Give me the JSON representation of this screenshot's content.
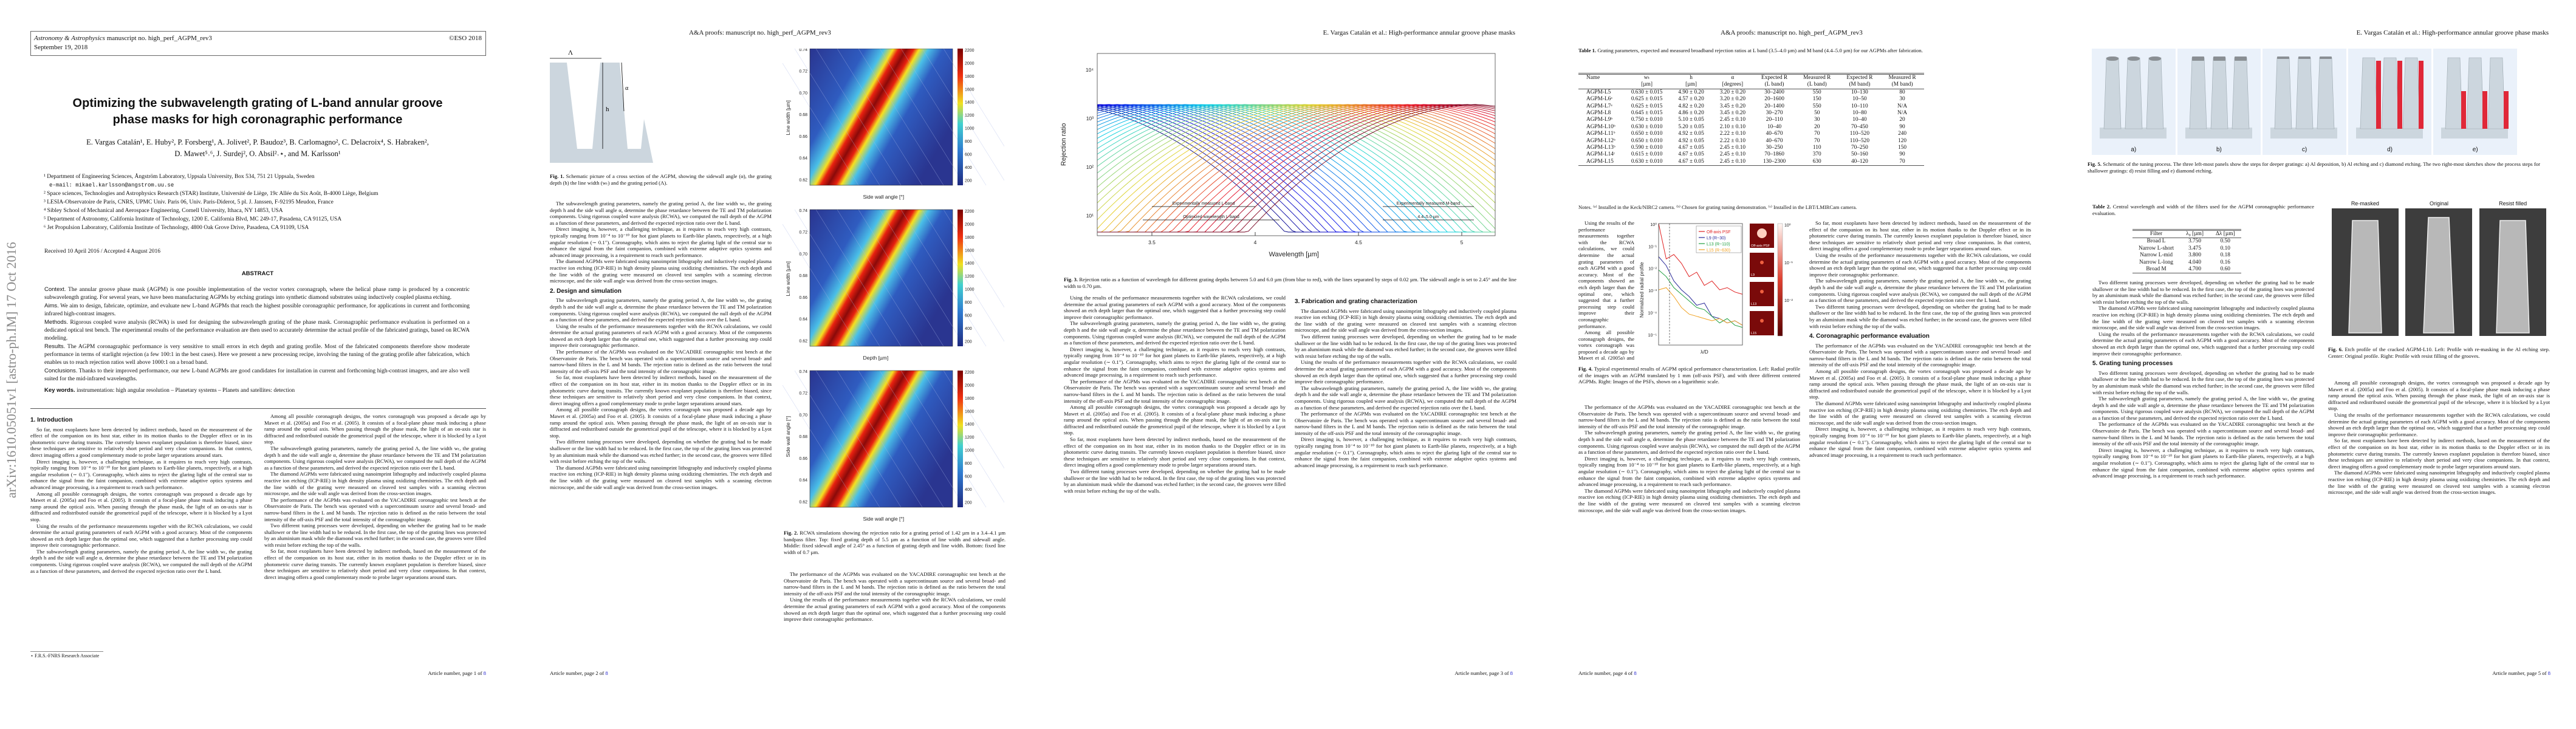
{
  "p1": {
    "journal": "Astronomy & Astrophysics",
    "manuscript": "manuscript no. high_perf_AGPM_rev3",
    "date": "September 19, 2018",
    "copyright": "©ESO 2018",
    "title1": "Optimizing the subwavelength grating of L-band annular groove",
    "title2": "phase masks for high coronagraphic performance",
    "authors1": "E. Vargas Catalán¹, E. Huby², P. Forsberg¹, A. Jolivet², P. Baudoz³, B. Carlomagno², C. Delacroix⁴, S. Habraken², ",
    "authors2": "D. Mawet⁵˒⁶, J. Surdej², O. Absil²˒⋆, and M. Karlsson¹",
    "affiliations": [
      "¹ Department of Engineering Sciences, Ångström Laboratory, Uppsala University, Box 534, 751 21 Uppsala, Sweden",
      "e-mail: mikael.karlsson@angstrom.uu.se",
      "² Space sciences, Technologies and Astrophysics Research (STAR) Institute, Université de Liège, 19c Allée du Six Août, B-4000 Liège, Belgium",
      "³ LESIA-Observatoire de Paris, CNRS, UPMC Univ. Paris 06, Univ. Paris-Diderot, 5 pl. J. Janssen, F-92195 Meudon, France",
      "⁴ Sibley School of Mechanical and Aerospace Engineering, Cornell University, Ithaca, NY 14853, USA",
      "⁵ Department of Astronomy, California Institute of Technology, 1200 E. California Blvd, MC 249-17, Pasadena, CA 91125, USA",
      "⁶ Jet Propulsion Laboratory, California Institute of Technology, 4800 Oak Grove Drive, Pasadena, CA 91109, USA"
    ],
    "received": "Received 10 April 2016 / Accepted 4 August 2016",
    "abstract_heading": "ABSTRACT",
    "abstract": [
      {
        "label": "Context.",
        "text": " The annular groove phase mask (AGPM) is one possible implementation of the vector vortex coronagraph, where the helical phase ramp is produced by a concentric subwavelength grating. For several years, we have been manufacturing AGPMs by etching gratings into synthetic diamond substrates using inductively coupled plasma etching."
      },
      {
        "label": "Aims.",
        "text": " We aim to design, fabricate, optimize, and evaluate new L-band AGPMs that reach the highest possible coronagraphic performance, for applications in current and forthcoming infrared high-contrast imagers."
      },
      {
        "label": "Methods.",
        "text": " Rigorous coupled wave analysis (RCWA) is used for designing the subwavelength grating of the phase mask. Coronagraphic performance evaluation is performed on a dedicated optical test bench. The experimental results of the performance evaluation are then used to accurately determine the actual profile of the fabricated gratings, based on RCWA modeling."
      },
      {
        "label": "Results.",
        "text": " The AGPM coronagraphic performance is very sensitive to small errors in etch depth and grating profile. Most of the fabricated components therefore show moderate performance in terms of starlight rejection (a few 100:1 in the best cases). Here we present a new processing recipe, involving the tuning of the grating profile after fabrication, which enables us to reach rejection ratios well above 1000:1 on a broad band."
      },
      {
        "label": "Conclusions.",
        "text": " Thanks to their improved performance, our new L-band AGPMs are good candidates for installation in current and forthcoming high-contrast imagers, and are also well suited for the mid-infrared wavelengths."
      }
    ],
    "keywords_label": "Key words.",
    "keywords": " instrumentation: high angular resolution – Planetary systems – Planets and satellites: detection",
    "footnote": "⋆ F.R.S.-FNRS Research Associate",
    "arxiv": "arXiv:1610.05051v1  [astro-ph.IM]  17 Oct 2016",
    "footer": "Article number, page 1 of ",
    "footer_n": "8"
  },
  "sections": {
    "s1": "1. Introduction",
    "s2": "2. Design and simulation",
    "s3": "3. Fabrication and grating characterization",
    "s4": "4. Coronagraphic performance evaluation",
    "s5": "5. Grating tuning processes"
  },
  "text": [
    "So far, most exoplanets have been detected by indirect methods, based on the measurement of the effect of the companion on its host star, either in its motion thanks to the Doppler effect or in its photometric curve during transits. The currently known exoplanet population is therefore biased, since these techniques are sensitive to relatively short period and very close companions. In that context, direct imaging offers a good complementary mode to probe larger separations around stars.",
    "Direct imaging is, however, a challenging technique, as it requires to reach very high contrasts, typically ranging from 10⁻⁴ to 10⁻¹⁰ for hot giant planets to Earth-like planets, respectively, at a high angular resolution (∼ 0.1″). Coronagraphy, which aims to reject the glaring light of the central star to enhance the signal from the faint companion, combined with extreme adaptive optics systems and advanced image processing, is a requirement to reach such performance.",
    "Among all possible coronagraph designs, the vortex coronagraph was proposed a decade ago by Mawet et al. (2005a) and Foo et al. (2005). It consists of a focal-plane phase mask inducing a phase ramp around the optical axis. When passing through the phase mask, the light of an on-axis star is diffracted and redistributed outside the geometrical pupil of the telescope, where it is blocked by a Lyot stop.",
    "The subwavelength grating parameters, namely the grating period Λ, the line width wₜ, the grating depth h and the side wall angle α, determine the phase retardance between the TE and TM polarization components. Using rigorous coupled wave analysis (RCWA), we computed the null depth of the AGPM as a function of these parameters, and derived the expected rejection ratio over the L band.",
    "The diamond AGPMs were fabricated using nanoimprint lithography and inductively coupled plasma reactive ion etching (ICP-RIE) in high density plasma using oxidizing chemistries. The etch depth and the line width of the grating were measured on cleaved test samples with a scanning electron microscope, and the side wall angle was derived from the cross-section images.",
    "The performance of the AGPMs was evaluated on the YACADIRE coronagraphic test bench at the Observatoire de Paris. The bench was operated with a supercontinuum source and several broad- and narrow-band filters in the L and M bands. The rejection ratio is defined as the ratio between the total intensity of the off-axis PSF and the total intensity of the coronagraphic image.",
    "Using the results of the performance measurements together with the RCWA calculations, we could determine the actual grating parameters of each AGPM with a good accuracy. Most of the components showed an etch depth larger than the optimal one, which suggested that a further processing step could improve their coronagraphic performance.",
    "Two different tuning processes were developed, depending on whether the grating had to be made shallower or the line width had to be reduced. In the first case, the top of the grating lines was protected by an aluminium mask while the diamond was etched further; in the second case, the grooves were filled with resist before etching the top of the walls."
  ],
  "p2": {
    "header": "A&A proofs: manuscript no. high_perf_AGPM_rev3",
    "fig1_lambda": "Λ",
    "fig1_alpha": "α",
    "fig1_h": "h",
    "fig1_caption_b": "Fig. 1.",
    "fig1_caption": " Schematic picture of a cross section of the AGPM, showing the sidewall angle (α), the grating depth (h) the line width (wₜ) and the grating period (Λ).",
    "fig2_yticks": [
      "0.74",
      "0.72",
      "0.70",
      "0.68",
      "0.66",
      "0.64",
      "0.62"
    ],
    "fig2_ylabel": "Line width [µm]",
    "fig2_ylabel2": "Side wall angle [°]",
    "fig2_xlabel": "Side wall angle [°]",
    "fig2_xlabel2": "Depth [µm]",
    "fig2_cbar": [
      "2200",
      "2000",
      "1800",
      "1600",
      "1400",
      "1200",
      "1000",
      "800",
      "600",
      "400",
      "200"
    ],
    "fig2_caption_b": "Fig. 2.",
    "fig2_caption": " RCWA simulations showing the rejection ratio for a grating period of 1.42 µm in a 3.4–4.1 µm bandpass filter. Top: fixed grating depth of 5.5 µm as a function of line width and sidewall angle. Middle: fixed sidewall angle of 2.45° as a function of grating depth and line width. Bottom: fixed line width of 0.7 µm.",
    "footer": "Article number, page 2 of ",
    "footer_n": "8"
  },
  "p3": {
    "header": "E. Vargas Catalán et al.: High-performance annular groove phase masks",
    "fig3_ylabel": "Rejection ratio",
    "fig3_xlabel": "Wavelength [µm]",
    "fig3_yticks": [
      "10⁴",
      "10³",
      "10²",
      "10¹"
    ],
    "fig3_xticks": [
      "3.5",
      "4",
      "4.5",
      "5"
    ],
    "fig3_bars": [
      "Experimentally measured L-band",
      "Optimized wavelength L-band",
      "Experimentally measured M-band",
      "4.4–5.0 µm"
    ],
    "fig3_caption_b": "Fig. 3.",
    "fig3_caption": " Rejection ratio as a function of wavelength for different grating depths between 5.0 and 6.0 µm (from blue to red), with the lines separated by steps of 0.02 µm. The sidewall angle is set to 2.45° and the line width to 0.70 µm.",
    "footer": "Article number, page 3 of ",
    "footer_n": "8"
  },
  "p4": {
    "header": "A&A proofs: manuscript no. high_perf_AGPM_rev3",
    "table1_caption_b": "Table 1.",
    "table1_caption": " Grating parameters, expected and measured broadband rejection ratios at L band (3.5–4.0 µm) and M band (4.4–5.0 µm) for our AGPMs after fabrication.",
    "table1_head": [
      [
        "Name",
        ""
      ],
      [
        "wₜ",
        "[µm]"
      ],
      [
        "h",
        "[µm]"
      ],
      [
        "α",
        "[degrees]"
      ],
      [
        "Expected R",
        "(L band)"
      ],
      [
        "Measured R",
        "(L band)"
      ],
      [
        "Expected R",
        "(M band)"
      ],
      [
        "Measured R",
        "(M band)"
      ]
    ],
    "table1_rows": [
      [
        "AGPM-L5",
        "0.630 ± 0.015",
        "4.90 ± 0.20",
        "3.20 ± 0.20",
        "30–2400",
        "550",
        "10–130",
        "80"
      ],
      [
        "AGPM-L6ᵃ",
        "0.625 ± 0.015",
        "4.57 ± 0.20",
        "3.20 ± 0.20",
        "20–1600",
        "150",
        "10–50",
        "30"
      ],
      [
        "AGPM-L7ᵃ",
        "0.625 ± 0.015",
        "4.82 ± 0.20",
        "3.45 ± 0.20",
        "20–1400",
        "550",
        "10–110",
        "N/A"
      ],
      [
        "AGPM-L8",
        "0.645 ± 0.015",
        "4.86 ± 0.20",
        "3.45 ± 0.20",
        "30–270",
        "50",
        "10–80",
        "N/A"
      ],
      [
        "AGPM-L9ᵇ",
        "0.750 ± 0.010",
        "5.10 ± 0.05",
        "2.45 ± 0.10",
        "20–110",
        "30",
        "10–40",
        "20"
      ],
      [
        "AGPM-L10ᵇ",
        "0.630 ± 0.010",
        "5.20 ± 0.05",
        "2.10 ± 0.10",
        "10–40",
        "20",
        "70–450",
        "90"
      ],
      [
        "AGPM-L11ᵇ",
        "0.650 ± 0.010",
        "4.92 ± 0.05",
        "2.22 ± 0.10",
        "40–670",
        "70",
        "110–520",
        "240"
      ],
      [
        "AGPM-L12ᵇ",
        "0.650 ± 0.010",
        "4.92 ± 0.05",
        "2.22 ± 0.10",
        "40–670",
        "70",
        "110–520",
        "120"
      ],
      [
        "AGPM-L13ᵇ",
        "0.590 ± 0.010",
        "4.67 ± 0.05",
        "2.45 ± 0.10",
        "30–250",
        "110",
        "70–250",
        "150"
      ],
      [
        "AGPM-L14ᶜ",
        "0.615 ± 0.010",
        "4.67 ± 0.05",
        "2.45 ± 0.10",
        "70–1860",
        "370",
        "50–160",
        "90"
      ],
      [
        "AGPM-L15",
        "0.630 ± 0.010",
        "4.67 ± 0.05",
        "2.45 ± 0.10",
        "130–2300",
        "630",
        "40–120",
        "70"
      ]
    ],
    "table1_note": "Notes. ⁽ᵃ⁾ Installed in the Keck/NIRC2 camera. ⁽ᵇ⁾ Chosen for grating tuning demonstration. ⁽ᶜ⁾ Installed in the LBT/LMIRCam camera.",
    "fig4_ylabel": "Normalized radial profile",
    "fig4_xlabel": "λ/D",
    "fig4_yticks": [
      "10⁰",
      "10⁻¹",
      "10⁻²",
      "10⁻³",
      "10⁻⁴",
      "10⁻⁵"
    ],
    "fig4_legend": [
      "Off-axis PSF",
      "L9 (R~30)",
      "L13 (R~110)",
      "L15 (R~630)"
    ],
    "fig4_thumbs": [
      "Off-axis PSF",
      "L9",
      "L13",
      "L15"
    ],
    "fig4_cbar": [
      "10⁰",
      "10⁻¹",
      "10⁻²"
    ],
    "fig4_caption_b": "Fig. 4.",
    "fig4_caption": " Typical experimental results of AGPM optical performance characterization. Left: Radial profile of the images with an AGPM translated by 1 mm (off-axis PSF), and with three different centered AGPMs. Right: Images of the PSFs, shown on a logarithmic scale.",
    "footer": "Article number, page 4 of ",
    "footer_n": "8"
  },
  "p5": {
    "header": "E. Vargas Catalán et al.: High-performance annular groove phase masks",
    "fig5_panels": [
      "a)",
      "b)",
      "c)",
      "d)",
      "e)"
    ],
    "fig5_caption_b": "Fig. 5.",
    "fig5_caption": " Schematic of the tuning process. The three left-most panels show the steps for deeper gratings: a) Al deposition, b) Al etching and c) diamond etching. The two right-most sketches show the process steps for shallower gratings: d) resist filling and e) diamond etching.",
    "table2_caption_b": "Table 2.",
    "table2_caption": " Central wavelength and width of the filters used for the AGPM coronagraphic performance evaluation.",
    "table2_head": [
      "Filter",
      "λ₀ [µm]",
      "Δλ [µm]"
    ],
    "table2_rows": [
      [
        "Broad L",
        "3.750",
        "0.50"
      ],
      [
        "Narrow L-short",
        "3.475",
        "0.10"
      ],
      [
        "Narrow L-mid",
        "3.800",
        "0.18"
      ],
      [
        "Narrow L-long",
        "4.040",
        "0.16"
      ],
      [
        "Broad M",
        "4.700",
        "0.60"
      ]
    ],
    "fig6_labels": [
      "Re-masked",
      "Original",
      "Resist filled"
    ],
    "fig6_caption_b": "Fig. 6.",
    "fig6_caption": " Etch profile of the cracked AGPM-L10. Left: Profile with re-masking in the Al etching step. Center: Original profile. Right: Profile with resist filling of the grooves.",
    "footer": "Article number, page 5 of ",
    "footer_n": "8"
  }
}
